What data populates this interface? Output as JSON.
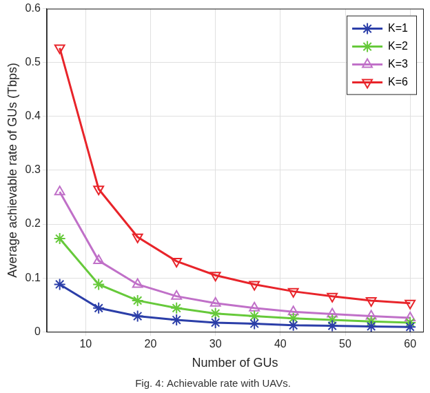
{
  "chart_data": {
    "type": "line",
    "title": "Fig. 4: Achievable rate with UAVs.",
    "x_label": "Number of GUs",
    "y_label": "Average achievable rate of GUs (Tbps)",
    "x": [
      6,
      12,
      18,
      24,
      30,
      36,
      42,
      48,
      54,
      60
    ],
    "series": [
      {
        "name": "K=1",
        "color": "#2b3ea8",
        "marker": "star",
        "values": [
          0.088,
          0.044,
          0.029,
          0.022,
          0.017,
          0.015,
          0.012,
          0.011,
          0.01,
          0.009
        ]
      },
      {
        "name": "K=2",
        "color": "#66c93a",
        "marker": "star",
        "values": [
          0.173,
          0.088,
          0.058,
          0.044,
          0.034,
          0.029,
          0.025,
          0.022,
          0.019,
          0.017
        ]
      },
      {
        "name": "K=3",
        "color": "#c070c8",
        "marker": "triangle",
        "values": [
          0.26,
          0.132,
          0.088,
          0.066,
          0.053,
          0.044,
          0.037,
          0.033,
          0.029,
          0.026
        ]
      },
      {
        "name": "K=6",
        "color": "#e8242a",
        "marker": "triangle-down",
        "values": [
          0.527,
          0.265,
          0.176,
          0.131,
          0.105,
          0.088,
          0.075,
          0.066,
          0.058,
          0.053
        ]
      }
    ],
    "xlim": [
      4,
      62
    ],
    "xticks": [
      10,
      20,
      30,
      40,
      50,
      60
    ],
    "ylim": [
      0,
      0.6
    ],
    "yticks": [
      0,
      0.1,
      0.2,
      0.3,
      0.4,
      0.5,
      0.6
    ],
    "grid": true,
    "legend": "upper right"
  }
}
